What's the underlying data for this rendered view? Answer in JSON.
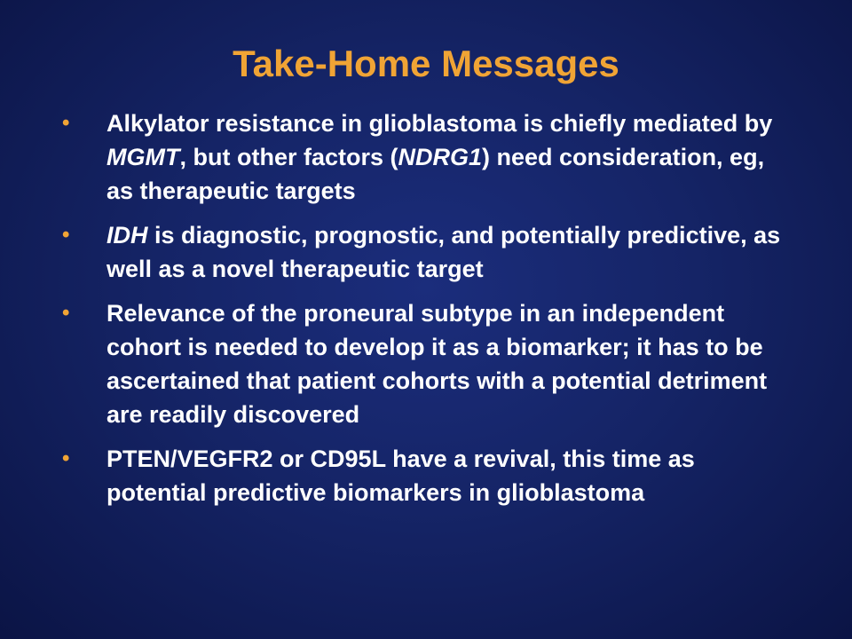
{
  "slide": {
    "title": "Take-Home Messages",
    "bullet_symbol": "•",
    "bullets": [
      {
        "parts": [
          {
            "text": "Alkylator resistance in glioblastoma is chiefly mediated by ",
            "italic": false
          },
          {
            "text": "MGMT",
            "italic": true
          },
          {
            "text": ", but other factors (",
            "italic": false
          },
          {
            "text": "NDRG1",
            "italic": true
          },
          {
            "text": ") need consideration, eg, as therapeutic targets",
            "italic": false
          }
        ]
      },
      {
        "parts": [
          {
            "text": "IDH",
            "italic": true
          },
          {
            "text": " is diagnostic, prognostic, and potentially predictive, as well as a novel therapeutic target",
            "italic": false
          }
        ]
      },
      {
        "parts": [
          {
            "text": "Relevance of the proneural subtype in an independent cohort is needed to develop it as a biomarker; it has to be ascertained that patient cohorts with a potential detriment are readily discovered",
            "italic": false
          }
        ]
      },
      {
        "parts": [
          {
            "text": "PTEN/VEGFR2 or CD95L have a revival, this time as potential predictive biomarkers in glioblastoma",
            "italic": false
          }
        ]
      }
    ],
    "colors": {
      "background": "#152466",
      "title": "#f0a435",
      "bullet": "#f0a435",
      "text": "#ffffff"
    }
  }
}
